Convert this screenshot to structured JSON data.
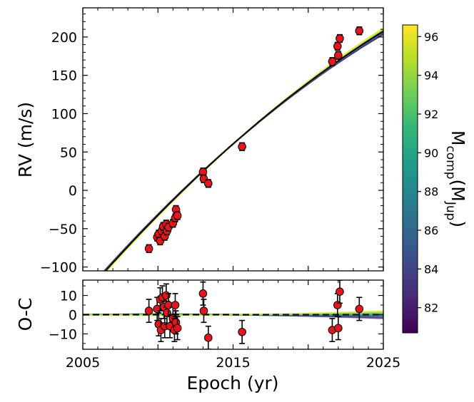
{
  "chart_data": {
    "type": "scatter",
    "top_panel": {
      "ylabel": "RV (m/s)",
      "ylim": [
        -105,
        238
      ],
      "yticks": [
        -100,
        -50,
        0,
        50,
        100,
        150,
        200
      ],
      "ytick_labels": [
        "−100",
        "−50",
        "0",
        "50",
        "100",
        "150",
        "200"
      ],
      "points": [
        {
          "x": 2009.4,
          "y": -76,
          "err": 5
        },
        {
          "x": 2009.95,
          "y": -61,
          "err": 5
        },
        {
          "x": 2010.05,
          "y": -57,
          "err": 5
        },
        {
          "x": 2010.15,
          "y": -66,
          "err": 5
        },
        {
          "x": 2010.25,
          "y": -53,
          "err": 5
        },
        {
          "x": 2010.35,
          "y": -47,
          "err": 5
        },
        {
          "x": 2010.45,
          "y": -60,
          "err": 5
        },
        {
          "x": 2010.55,
          "y": -44,
          "err": 5
        },
        {
          "x": 2010.6,
          "y": -53,
          "err": 5
        },
        {
          "x": 2010.7,
          "y": -48,
          "err": 5
        },
        {
          "x": 2011.0,
          "y": -43,
          "err": 5
        },
        {
          "x": 2011.15,
          "y": -36,
          "err": 5
        },
        {
          "x": 2011.2,
          "y": -25,
          "err": 5
        },
        {
          "x": 2011.3,
          "y": -33,
          "err": 5
        },
        {
          "x": 2013.0,
          "y": 24,
          "err": 5
        },
        {
          "x": 2013.05,
          "y": 15,
          "err": 5
        },
        {
          "x": 2013.35,
          "y": 9,
          "err": 5
        },
        {
          "x": 2015.6,
          "y": 57,
          "err": 5
        },
        {
          "x": 2021.6,
          "y": 168,
          "err": 5
        },
        {
          "x": 2021.95,
          "y": 188,
          "err": 5
        },
        {
          "x": 2022.0,
          "y": 176,
          "err": 5
        },
        {
          "x": 2022.1,
          "y": 198,
          "err": 5
        },
        {
          "x": 2023.4,
          "y": 208,
          "err": 5
        }
      ]
    },
    "bottom_panel": {
      "ylabel": "O-C",
      "ylim": [
        -18,
        18
      ],
      "yticks": [
        -10,
        0,
        10
      ],
      "ytick_labels": [
        "−10",
        "0",
        "10"
      ],
      "points": [
        {
          "x": 2009.4,
          "y": 2,
          "err": 6
        },
        {
          "x": 2009.95,
          "y": 3,
          "err": 6
        },
        {
          "x": 2010.05,
          "y": -5,
          "err": 6
        },
        {
          "x": 2010.15,
          "y": 8,
          "err": 6
        },
        {
          "x": 2010.2,
          "y": -8,
          "err": 6
        },
        {
          "x": 2010.3,
          "y": 9,
          "err": 6
        },
        {
          "x": 2010.4,
          "y": 4,
          "err": 6
        },
        {
          "x": 2010.45,
          "y": -6,
          "err": 6
        },
        {
          "x": 2010.55,
          "y": 10,
          "err": 6
        },
        {
          "x": 2010.6,
          "y": 1,
          "err": 6
        },
        {
          "x": 2010.7,
          "y": 5,
          "err": 6
        },
        {
          "x": 2010.8,
          "y": -6,
          "err": 6
        },
        {
          "x": 2011.0,
          "y": -2,
          "err": 6
        },
        {
          "x": 2011.1,
          "y": -8,
          "err": 6
        },
        {
          "x": 2011.15,
          "y": 5,
          "err": 6
        },
        {
          "x": 2011.2,
          "y": -4,
          "err": 6
        },
        {
          "x": 2011.3,
          "y": -7,
          "err": 6
        },
        {
          "x": 2013.0,
          "y": 11,
          "err": 6
        },
        {
          "x": 2013.05,
          "y": 2,
          "err": 6
        },
        {
          "x": 2013.35,
          "y": -12,
          "err": 6
        },
        {
          "x": 2015.6,
          "y": -9,
          "err": 6
        },
        {
          "x": 2021.6,
          "y": -8,
          "err": 6
        },
        {
          "x": 2021.95,
          "y": 5,
          "err": 6
        },
        {
          "x": 2022.0,
          "y": -7,
          "err": 6
        },
        {
          "x": 2022.1,
          "y": 12,
          "err": 6
        },
        {
          "x": 2023.4,
          "y": 3,
          "err": 6
        }
      ]
    },
    "xlabel": "Epoch (yr)",
    "xlim": [
      2005,
      2025
    ],
    "xticks": [
      2005,
      2015,
      2025
    ],
    "xtick_labels": [
      "2005",
      "2015",
      "2025"
    ],
    "colorbar": {
      "label_main": "M",
      "label_sub1": "comp",
      "label_mid": "(M",
      "label_sub2": "Jup",
      "label_end": ")",
      "range": [
        80.7,
        96.6
      ],
      "ticks": [
        82,
        84,
        86,
        88,
        90,
        92,
        94,
        96
      ],
      "tick_labels": [
        "82",
        "84",
        "86",
        "88",
        "90",
        "92",
        "94",
        "96"
      ],
      "colormap": "viridis"
    },
    "colors": {
      "points": "#e8141b",
      "point_edge": "#000000",
      "best_fit": "#000000",
      "viridis": [
        "#440154",
        "#482878",
        "#3e4989",
        "#31688e",
        "#26828e",
        "#1f9e89",
        "#35b779",
        "#6ece58",
        "#b5de2b",
        "#fde725"
      ]
    }
  }
}
